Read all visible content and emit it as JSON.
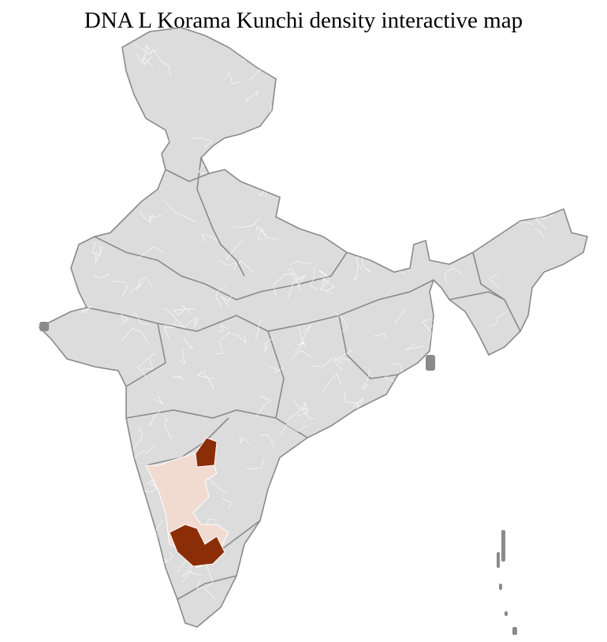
{
  "title": "DNA L Korama Kunchi density interactive map",
  "colors": {
    "base": "#dcdcdc",
    "district_border": "#ffffff",
    "state_border": "#8a8a8a",
    "high_density": "#8b2e08",
    "low_density": "#f1dbd0"
  },
  "regions": [
    {
      "area": "Karnataka (most districts)",
      "level": "low"
    },
    {
      "area": "Northeastern Karnataka districts",
      "level": "high"
    },
    {
      "area": "Southern Karnataka districts",
      "level": "high"
    }
  ]
}
